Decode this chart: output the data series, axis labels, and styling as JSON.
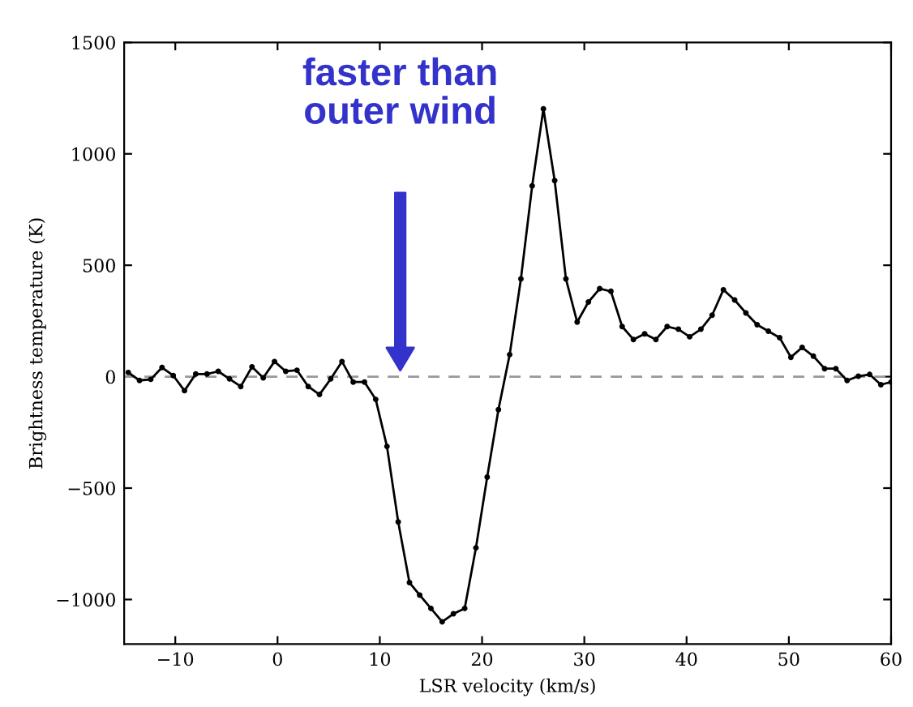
{
  "chart_data": {
    "type": "line",
    "xlabel": "LSR velocity (km/s)",
    "ylabel": "Brightness temperature (K)",
    "x": [
      -14.6,
      -13.5,
      -12.4,
      -11.3,
      -10.2,
      -9.1,
      -8.0,
      -6.9,
      -5.8,
      -4.7,
      -3.6,
      -2.5,
      -1.4,
      -0.3,
      0.8,
      1.9,
      3.0,
      4.1,
      5.2,
      6.3,
      7.4,
      8.5,
      9.6,
      10.7,
      11.8,
      12.9,
      13.9,
      15.0,
      16.1,
      17.2,
      18.3,
      19.4,
      20.5,
      21.6,
      22.7,
      23.8,
      24.9,
      26.0,
      27.1,
      28.2,
      29.3,
      30.4,
      31.5,
      32.6,
      33.7,
      34.8,
      35.9,
      37.0,
      38.1,
      39.2,
      40.3,
      41.4,
      42.5,
      43.6,
      44.7,
      45.8,
      46.9,
      48.0,
      49.1,
      50.2,
      51.3,
      52.4,
      53.5,
      54.6,
      55.7,
      56.8,
      57.9,
      59.0,
      60.0
    ],
    "series": [
      {
        "color": "#000000",
        "values": [
          19,
          -17,
          -12,
          41,
          5,
          -63,
          12,
          12,
          24,
          -10,
          -44,
          44,
          -5,
          68,
          24,
          29,
          -44,
          -80,
          -10,
          68,
          -24,
          -24,
          -102,
          -313,
          -652,
          -924,
          -980,
          -1040,
          -1100,
          -1064,
          -1040,
          -768,
          -451,
          -148,
          99,
          439,
          856,
          1202,
          880,
          439,
          245,
          335,
          395,
          383,
          225,
          167,
          192,
          167,
          225,
          213,
          179,
          213,
          276,
          390,
          344,
          286,
          233,
          204,
          175,
          87,
          131,
          92,
          36,
          36,
          -17,
          2,
          10,
          -36,
          -24
        ]
      }
    ],
    "marker": "circle",
    "line_style": "solid",
    "xlim": [
      -15,
      60
    ],
    "xticks": [
      {
        "value": -10,
        "label": "−10"
      },
      0,
      10,
      20,
      30,
      40,
      50,
      60
    ],
    "ylim": [
      -1200,
      1500
    ],
    "yticks": [
      {
        "value": -1000,
        "label": "−1000"
      },
      {
        "value": -500,
        "label": "−500"
      },
      0,
      500,
      1000,
      1500
    ],
    "grid": false,
    "ref_lines": [
      {
        "axis": "y",
        "value": 0,
        "color": "#999999",
        "line_style": "dashed"
      }
    ],
    "annotations": [
      "faster than\nouter wind"
    ]
  }
}
